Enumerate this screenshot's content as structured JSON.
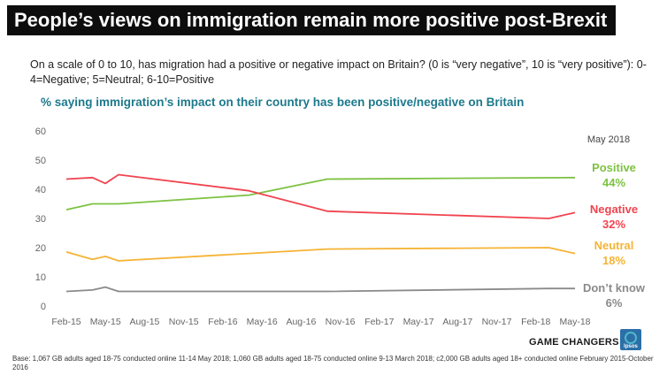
{
  "header": {
    "title": "People’s views on immigration remain more positive post-Brexit"
  },
  "question": "On a scale of 0 to 10, has migration had a positive or negative impact on Britain? (0 is “very negative”, 10 is “very positive”): 0-4=Negative; 5=Neutral; 6-10=Positive",
  "chart_data": {
    "type": "line",
    "title": "% saying immigration’s impact on their country has been positive/negative on Britain",
    "x_tick_labels": [
      "Feb-15",
      "May-15",
      "Aug-15",
      "Nov-15",
      "Feb-16",
      "May-16",
      "Aug-16",
      "Nov-16",
      "Feb-17",
      "May-17",
      "Aug-17",
      "Nov-17",
      "Feb-18",
      "May-18"
    ],
    "y_ticks": [
      0,
      10,
      20,
      30,
      40,
      50,
      60
    ],
    "ylim": [
      0,
      60
    ],
    "grid": false,
    "legend_header": "May 2018",
    "series": [
      {
        "name": "Positive",
        "end_label": "44%",
        "color": "#7dc242",
        "x": [
          "2015-02",
          "2015-04",
          "2015-05",
          "2015-06",
          "2016-04",
          "2016-10",
          "2018-05"
        ],
        "y": [
          33,
          35,
          35,
          35,
          38,
          43.5,
          44
        ]
      },
      {
        "name": "Negative",
        "end_label": "32%",
        "color": "#f0444f",
        "x": [
          "2015-02",
          "2015-04",
          "2015-05",
          "2015-06",
          "2016-04",
          "2016-10",
          "2018-03",
          "2018-05"
        ],
        "y": [
          43.5,
          44,
          42,
          45,
          39.5,
          32.5,
          30,
          32
        ]
      },
      {
        "name": "Neutral",
        "end_label": "18%",
        "color": "#f5b335",
        "x": [
          "2015-02",
          "2015-04",
          "2015-05",
          "2015-06",
          "2016-04",
          "2016-10",
          "2018-03",
          "2018-05"
        ],
        "y": [
          18.5,
          16,
          17,
          15.5,
          18,
          19.5,
          20,
          18
        ]
      },
      {
        "name": "Don’t know",
        "end_label": "6%",
        "color": "#8a8a8a",
        "x": [
          "2015-02",
          "2015-04",
          "2015-05",
          "2015-06",
          "2016-04",
          "2016-10",
          "2018-03",
          "2018-05"
        ],
        "y": [
          5,
          5.5,
          6.5,
          5,
          5,
          5,
          6,
          6
        ]
      }
    ]
  },
  "branding": {
    "tagline": "GAME CHANGERS",
    "logo_text": "Ipsos",
    "logo_color": "#2c6fa8"
  },
  "footnote": "Base: 1,067 GB adults aged 18-75 conducted online 11-14 May 2018; 1,060 GB adults aged 18-75 conducted online 9-13 March 2018; c2,000 GB adults aged 18+  conducted online February 2015-October 2016"
}
